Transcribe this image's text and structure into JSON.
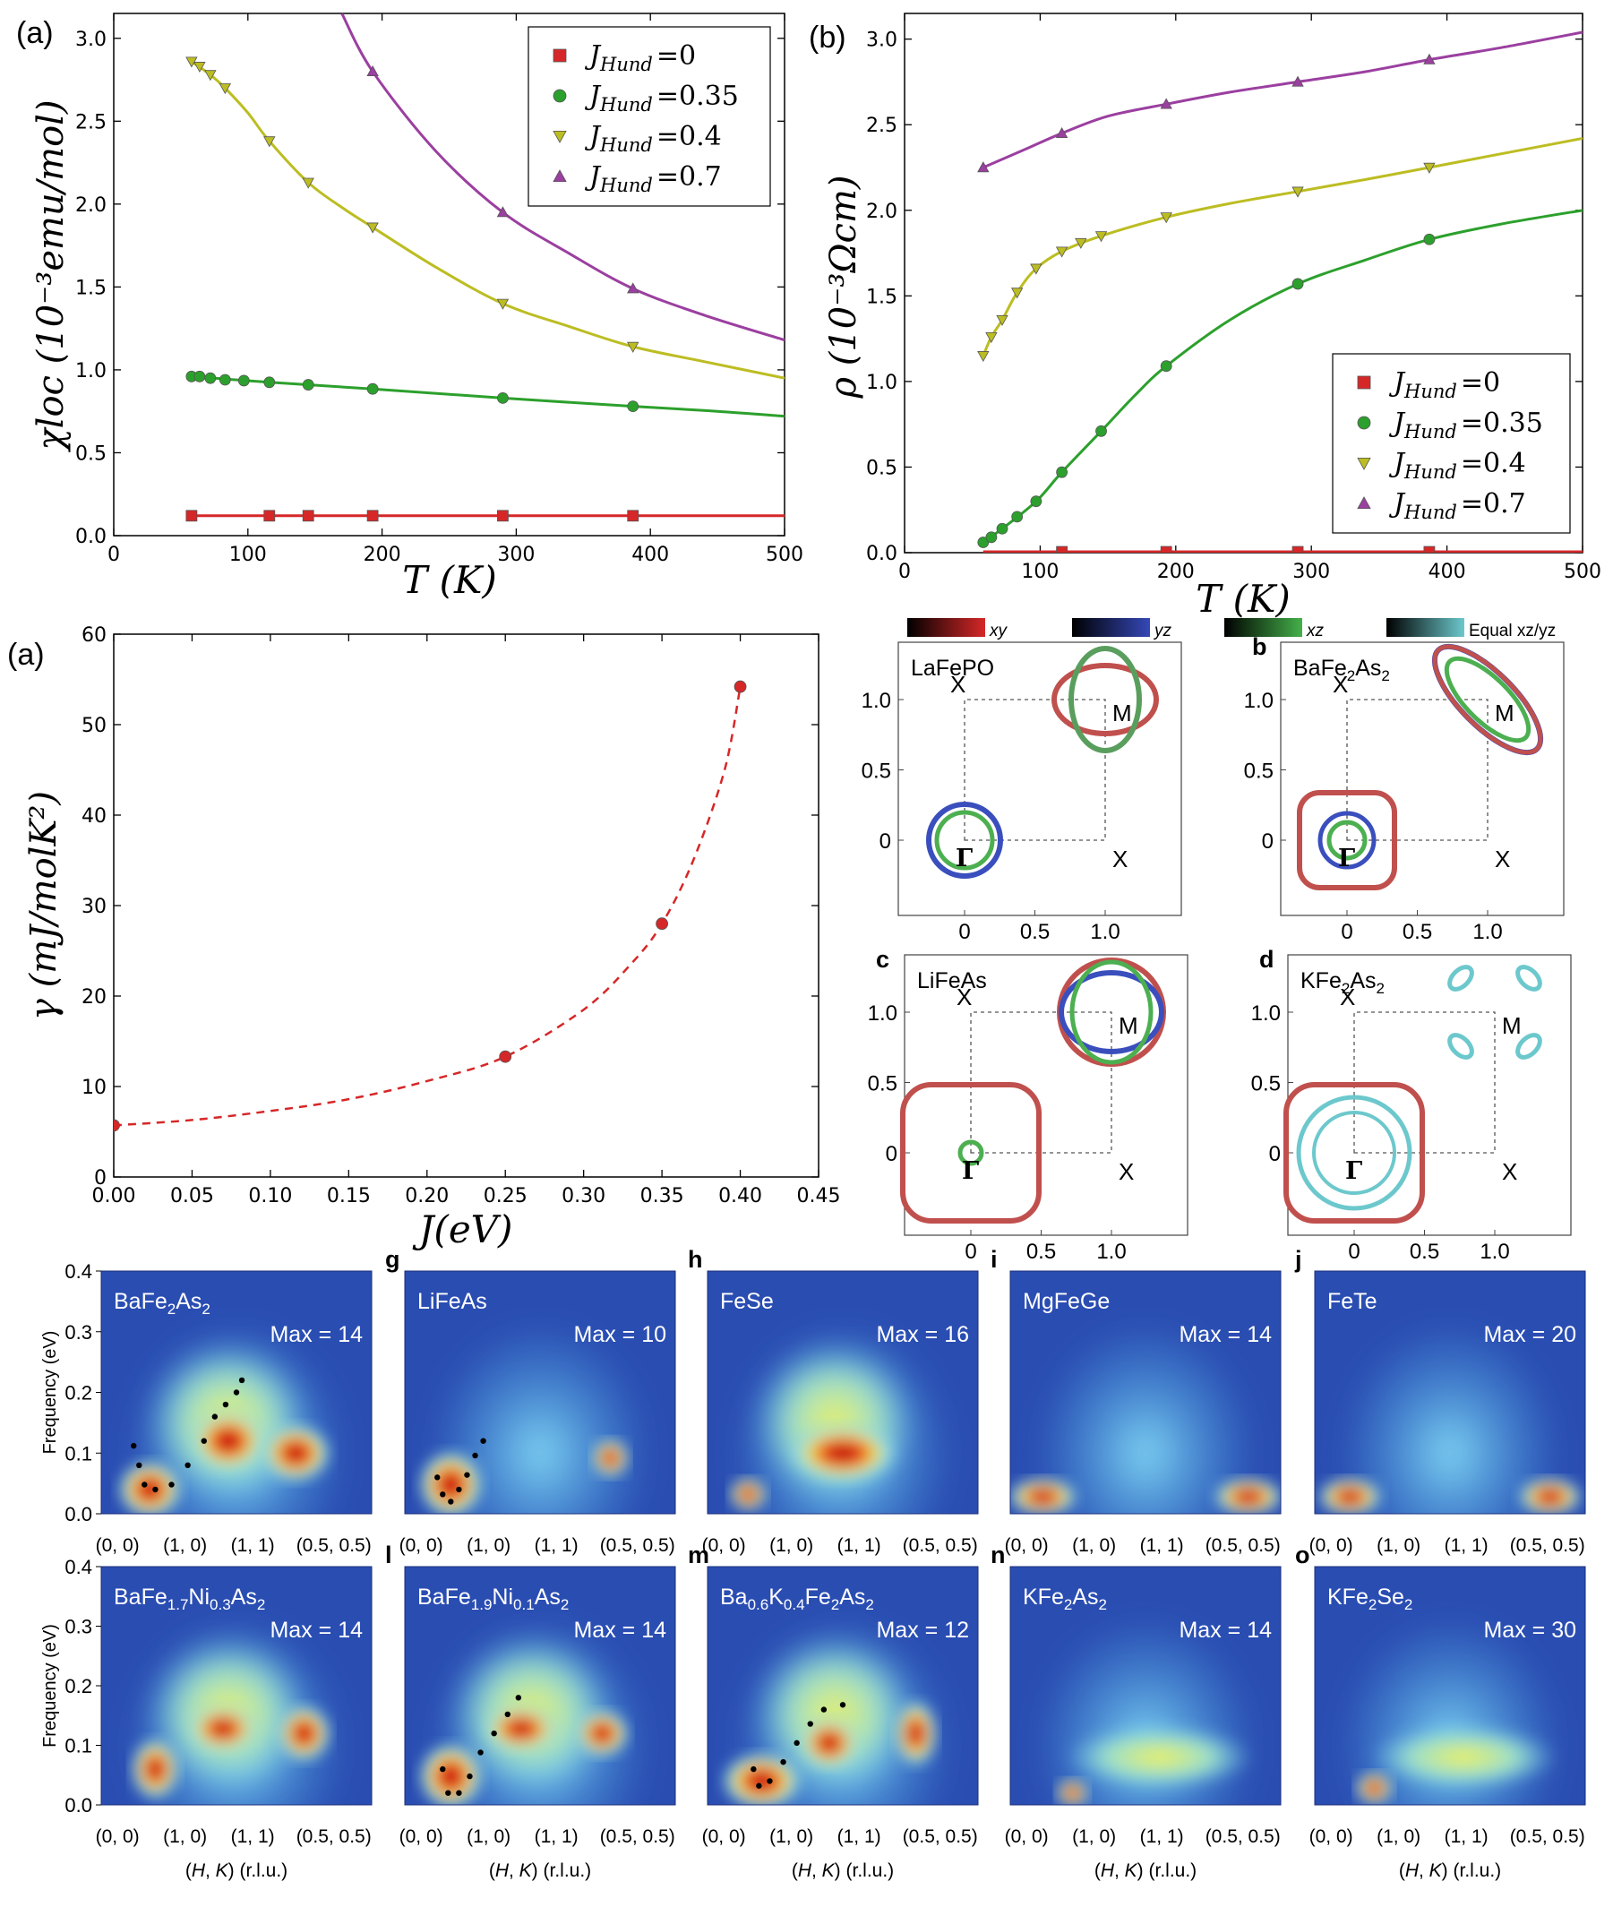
{
  "chart_data": [
    {
      "id": "chi",
      "type": "line",
      "panel_label": "(a)",
      "xlabel": "T (K)",
      "ylabel": "χloc (10⁻³emu/mol)",
      "xlim": [
        0,
        500
      ],
      "ylim": [
        0,
        3.15
      ],
      "xticks": [
        "0",
        "100",
        "200",
        "300",
        "400",
        "500"
      ],
      "yticks": [
        "0.0",
        "0.5",
        "1.0",
        "1.5",
        "2.0",
        "2.5",
        "3.0"
      ],
      "legend": "top-right",
      "series": [
        {
          "name": "J_Hund = 0",
          "sub": "Hund",
          "value_text": "=0",
          "color": "#d62728",
          "marker": "square",
          "x": [
            58,
            116,
            145,
            193,
            290,
            387
          ],
          "y": [
            0.12,
            0.12,
            0.12,
            0.12,
            0.12,
            0.12
          ],
          "curve_x": [
            58,
            500
          ],
          "curve_y": [
            0.12,
            0.12
          ]
        },
        {
          "name": "J_Hund = 0.35",
          "sub": "Hund",
          "value_text": "=0.35",
          "color": "#2ca02c",
          "marker": "circle",
          "x": [
            58,
            64,
            72,
            83,
            97,
            116,
            145,
            193,
            290,
            387
          ],
          "y": [
            0.96,
            0.96,
            0.95,
            0.94,
            0.935,
            0.925,
            0.91,
            0.885,
            0.83,
            0.78
          ],
          "curve_x": [
            58,
            116,
            193,
            290,
            387,
            450,
            500
          ],
          "curve_y": [
            0.96,
            0.925,
            0.885,
            0.83,
            0.78,
            0.75,
            0.72
          ]
        },
        {
          "name": "J_Hund = 0.4",
          "sub": "Hund",
          "value_text": "=0.4",
          "color": "#bcbd22",
          "marker": "triangle-down",
          "x": [
            58,
            64,
            72,
            83,
            116,
            145,
            193,
            290,
            387
          ],
          "y": [
            2.86,
            2.83,
            2.78,
            2.7,
            2.38,
            2.13,
            1.86,
            1.4,
            1.14
          ],
          "curve_x": [
            58,
            72,
            83,
            100,
            116,
            145,
            170,
            193,
            240,
            290,
            340,
            387,
            440,
            500
          ],
          "curve_y": [
            2.86,
            2.78,
            2.7,
            2.55,
            2.38,
            2.13,
            1.98,
            1.86,
            1.62,
            1.4,
            1.26,
            1.14,
            1.05,
            0.95
          ]
        },
        {
          "name": "J_Hund = 0.7",
          "sub": "Hund",
          "value_text": "=0.7",
          "color": "#9b3fa0",
          "marker": "triangle-up",
          "x": [
            193,
            290,
            387
          ],
          "y": [
            2.8,
            1.95,
            1.49
          ],
          "curve_x": [
            170,
            193,
            240,
            290,
            340,
            387,
            440,
            500
          ],
          "curve_y": [
            3.15,
            2.8,
            2.32,
            1.95,
            1.7,
            1.49,
            1.33,
            1.18
          ]
        }
      ]
    },
    {
      "id": "rho",
      "type": "line",
      "panel_label": "(b)",
      "xlabel": "T (K)",
      "ylabel": "ρ (10⁻³Ωcm)",
      "xlim": [
        0,
        500
      ],
      "ylim": [
        0,
        3.15
      ],
      "xticks": [
        "0",
        "100",
        "200",
        "300",
        "400",
        "500"
      ],
      "yticks": [
        "0.0",
        "0.5",
        "1.0",
        "1.5",
        "2.0",
        "2.5",
        "3.0"
      ],
      "legend": "lower-right",
      "series": [
        {
          "name": "J_Hund = 0",
          "sub": "Hund",
          "value_text": "=0",
          "color": "#d62728",
          "marker": "square",
          "x": [
            116,
            193,
            290,
            387
          ],
          "y": [
            0.005,
            0.005,
            0.005,
            0.005
          ],
          "curve_x": [
            58,
            500
          ],
          "curve_y": [
            0.005,
            0.005
          ]
        },
        {
          "name": "J_Hund = 0.35",
          "sub": "Hund",
          "value_text": "=0.35",
          "color": "#2ca02c",
          "marker": "circle",
          "x": [
            58,
            64,
            72,
            83,
            97,
            116,
            145,
            193,
            290,
            387
          ],
          "y": [
            0.06,
            0.09,
            0.14,
            0.21,
            0.3,
            0.47,
            0.71,
            1.09,
            1.57,
            1.83
          ],
          "curve_x": [
            58,
            72,
            97,
            116,
            145,
            170,
            193,
            240,
            290,
            340,
            387,
            440,
            500
          ],
          "curve_y": [
            0.06,
            0.14,
            0.3,
            0.47,
            0.71,
            0.92,
            1.09,
            1.36,
            1.57,
            1.71,
            1.83,
            1.92,
            2.0
          ]
        },
        {
          "name": "J_Hund = 0.4",
          "sub": "Hund",
          "value_text": "=0.4",
          "color": "#bcbd22",
          "marker": "triangle-down",
          "x": [
            58,
            64,
            72,
            83,
            97,
            116,
            130,
            145,
            193,
            290,
            387
          ],
          "y": [
            1.15,
            1.26,
            1.36,
            1.52,
            1.66,
            1.76,
            1.81,
            1.85,
            1.96,
            2.11,
            2.25
          ],
          "curve_x": [
            58,
            64,
            72,
            83,
            97,
            116,
            145,
            193,
            240,
            290,
            340,
            387,
            440,
            500
          ],
          "curve_y": [
            1.15,
            1.26,
            1.36,
            1.52,
            1.66,
            1.76,
            1.85,
            1.96,
            2.04,
            2.11,
            2.18,
            2.25,
            2.33,
            2.42
          ]
        },
        {
          "name": "J_Hund = 0.7",
          "sub": "Hund",
          "value_text": "=0.7",
          "color": "#9b3fa0",
          "marker": "triangle-up",
          "x": [
            58,
            116,
            193,
            290,
            387
          ],
          "y": [
            2.25,
            2.45,
            2.62,
            2.75,
            2.88
          ],
          "curve_x": [
            58,
            90,
            116,
            150,
            193,
            240,
            290,
            340,
            387,
            440,
            500
          ],
          "curve_y": [
            2.25,
            2.36,
            2.45,
            2.55,
            2.62,
            2.69,
            2.75,
            2.81,
            2.88,
            2.95,
            3.04
          ]
        }
      ]
    },
    {
      "id": "gamma",
      "type": "line",
      "panel_label": "(a)",
      "xlabel": "J(eV)",
      "ylabel": "γ (mJ/molK²)",
      "xlim": [
        0,
        0.45
      ],
      "ylim": [
        0,
        60
      ],
      "xticks": [
        "0.00",
        "0.05",
        "0.10",
        "0.15",
        "0.20",
        "0.25",
        "0.30",
        "0.35",
        "0.40",
        "0.45"
      ],
      "yticks": [
        "0",
        "10",
        "20",
        "30",
        "40",
        "50",
        "60"
      ],
      "series": [
        {
          "name": "",
          "color": "#d62728",
          "marker": "circle",
          "dashed": true,
          "x": [
            0.0,
            0.25,
            0.35,
            0.4
          ],
          "y": [
            5.7,
            13.3,
            28.0,
            54.2
          ],
          "curve_x": [
            0.0,
            0.05,
            0.1,
            0.15,
            0.2,
            0.25,
            0.3,
            0.33,
            0.35,
            0.37,
            0.39,
            0.4
          ],
          "curve_y": [
            5.7,
            6.3,
            7.3,
            8.6,
            10.6,
            13.3,
            18.5,
            23.5,
            28.0,
            35.0,
            45.0,
            54.2
          ]
        }
      ]
    }
  ],
  "fermi": {
    "colorbar_labels": [
      "xy",
      "yz",
      "xz",
      "Equal xz/yz"
    ],
    "xticks": [
      "0",
      "0.5",
      "1.0"
    ],
    "yticks": [
      "0",
      "0.5",
      "1.0"
    ],
    "point_labels": {
      "gamma": "Γ",
      "m": "M",
      "x": "X"
    },
    "panels": [
      {
        "letter": "",
        "title_pre": "LaFePO",
        "title_sub": "",
        "title_post": ""
      },
      {
        "letter": "b",
        "title_pre": "BaFe",
        "title_sub": "2",
        "title_post": "As",
        "title_sub2": "2"
      },
      {
        "letter": "c",
        "title_pre": "LiFeAs",
        "title_sub": "",
        "title_post": ""
      },
      {
        "letter": "d",
        "title_pre": "KFe",
        "title_sub": "2",
        "title_post": "As",
        "title_sub2": "2"
      }
    ]
  },
  "spectra": {
    "ylabel": "Frequency (eV)",
    "yticks": [
      "0.0",
      "0.1",
      "0.2",
      "0.3",
      "0.4"
    ],
    "xticks": [
      "(0, 0)",
      "(1, 0)",
      "(1, 1)",
      "(0.5, 0.5)"
    ],
    "xlabel_pre": "(",
    "xlabel_h": "H",
    "xlabel_mid": ", ",
    "xlabel_k": "K",
    "xlabel_post": ") (r.l.u.)",
    "row1": [
      {
        "letter": "",
        "parts": [
          "BaFe",
          "2",
          "As",
          "2"
        ],
        "max": "Max = 14"
      },
      {
        "letter": "g",
        "parts": [
          "LiFeAs"
        ],
        "max": "Max = 10"
      },
      {
        "letter": "h",
        "parts": [
          "FeSe"
        ],
        "max": "Max = 16"
      },
      {
        "letter": "i",
        "parts": [
          "MgFeGe"
        ],
        "max": "Max = 14"
      },
      {
        "letter": "j",
        "parts": [
          "FeTe"
        ],
        "max": "Max = 20"
      }
    ],
    "row2": [
      {
        "letter": "",
        "parts": [
          "BaFe",
          "1.7",
          "Ni",
          "0.3",
          "As",
          "2"
        ],
        "max": "Max = 14"
      },
      {
        "letter": "l",
        "parts": [
          "BaFe",
          "1.9",
          "Ni",
          "0.1",
          "As",
          "2"
        ],
        "max": "Max = 14"
      },
      {
        "letter": "m",
        "parts": [
          "Ba",
          "0.6",
          "K",
          "0.4",
          "Fe",
          "2",
          "As",
          "2"
        ],
        "max": "Max = 12"
      },
      {
        "letter": "n",
        "parts": [
          "KFe",
          "2",
          "As",
          "2"
        ],
        "max": "Max = 14"
      },
      {
        "letter": "o",
        "parts": [
          "KFe",
          "2",
          "Se",
          "2"
        ],
        "max": "Max = 30"
      }
    ]
  }
}
